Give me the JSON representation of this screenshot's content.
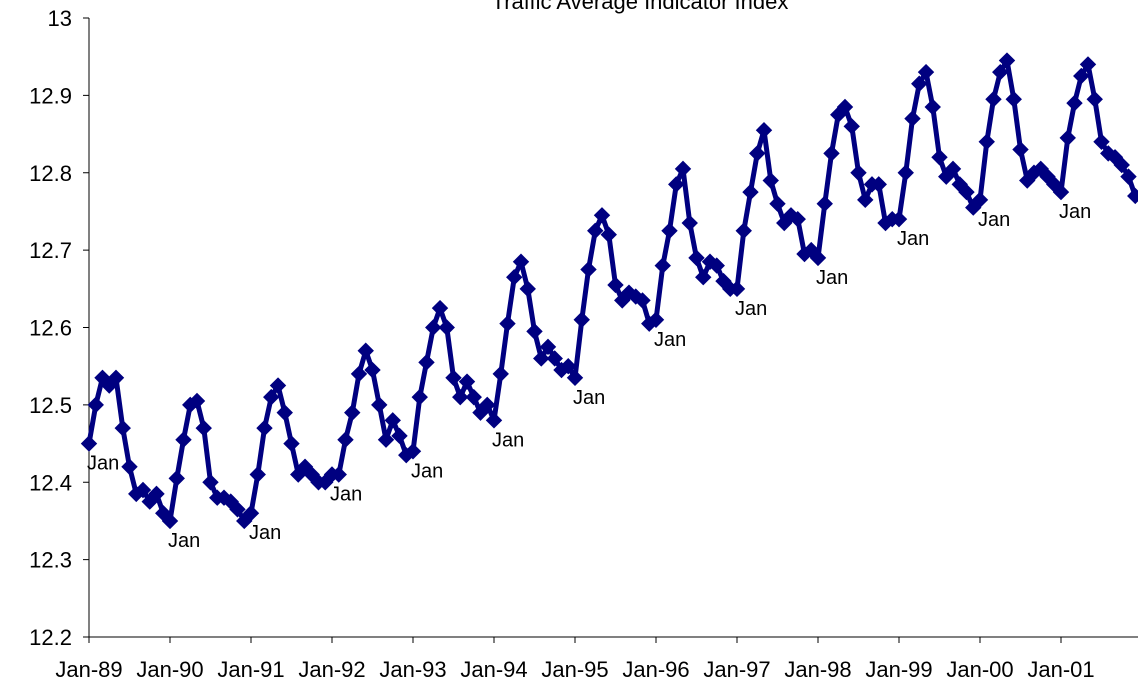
{
  "chart_data": {
    "type": "line",
    "title": "Traffic Average Indicator Index",
    "ylim": [
      12.2,
      13.0
    ],
    "yticks": [
      "12.2",
      "12.3",
      "12.4",
      "12.5",
      "12.6",
      "12.7",
      "12.8",
      "12.9",
      "13"
    ],
    "xlabels": [
      "Jan-89",
      "Jan-90",
      "Jan-91",
      "Jan-92",
      "Jan-93",
      "Jan-94",
      "Jan-95",
      "Jan-96",
      "Jan-97",
      "Jan-98",
      "Jan-99",
      "Jan-00",
      "Jan-01"
    ],
    "x_start": "Jan-89",
    "frequency": "monthly",
    "grid": false,
    "colors": {
      "line": "#000080",
      "marker": "#000080"
    },
    "marker": "diamond",
    "series": [
      {
        "values": [
          12.45,
          12.5,
          12.535,
          12.525,
          12.535,
          12.47,
          12.42,
          12.385,
          12.39,
          12.375,
          12.385,
          12.36,
          12.35,
          12.405,
          12.455,
          12.5,
          12.505,
          12.47,
          12.4,
          12.38,
          12.38,
          12.375,
          12.365,
          12.35,
          12.36,
          12.41,
          12.47,
          12.51,
          12.525,
          12.49,
          12.45,
          12.41,
          12.42,
          12.41,
          12.4,
          12.4,
          12.41,
          12.41,
          12.455,
          12.49,
          12.54,
          12.57,
          12.545,
          12.5,
          12.455,
          12.48,
          12.46,
          12.435,
          12.44,
          12.51,
          12.555,
          12.6,
          12.625,
          12.6,
          12.535,
          12.51,
          12.53,
          12.51,
          12.49,
          12.5,
          12.48,
          12.54,
          12.605,
          12.665,
          12.685,
          12.65,
          12.595,
          12.56,
          12.575,
          12.56,
          12.545,
          12.55,
          12.535,
          12.61,
          12.675,
          12.725,
          12.745,
          12.72,
          12.655,
          12.635,
          12.645,
          12.64,
          12.635,
          12.605,
          12.61,
          12.68,
          12.725,
          12.785,
          12.805,
          12.735,
          12.69,
          12.665,
          12.685,
          12.68,
          12.66,
          12.65,
          12.65,
          12.725,
          12.775,
          12.825,
          12.855,
          12.79,
          12.76,
          12.735,
          12.745,
          12.74,
          12.695,
          12.7,
          12.69,
          12.76,
          12.825,
          12.875,
          12.885,
          12.86,
          12.8,
          12.765,
          12.785,
          12.785,
          12.735,
          12.74,
          12.74,
          12.8,
          12.87,
          12.915,
          12.93,
          12.885,
          12.82,
          12.795,
          12.805,
          12.785,
          12.775,
          12.755,
          12.765,
          12.84,
          12.895,
          12.93,
          12.945,
          12.895,
          12.83,
          12.79,
          12.8,
          12.805,
          12.795,
          12.785,
          12.775,
          12.845,
          12.89,
          12.925,
          12.94,
          12.895,
          12.84,
          12.825,
          12.82,
          12.81,
          12.795,
          12.77
        ]
      }
    ],
    "annotations": [
      {
        "text": "Jan",
        "index": 0
      },
      {
        "text": "Jan",
        "index": 12
      },
      {
        "text": "Jan",
        "index": 24
      },
      {
        "text": "Jan",
        "index": 36
      },
      {
        "text": "Jan",
        "index": 48
      },
      {
        "text": "Jan",
        "index": 60
      },
      {
        "text": "Jan",
        "index": 72
      },
      {
        "text": "Jan",
        "index": 84
      },
      {
        "text": "Jan",
        "index": 96
      },
      {
        "text": "Jan",
        "index": 108
      },
      {
        "text": "Jan",
        "index": 120
      },
      {
        "text": "Jan",
        "index": 132
      },
      {
        "text": "Jan",
        "index": 144
      }
    ]
  }
}
